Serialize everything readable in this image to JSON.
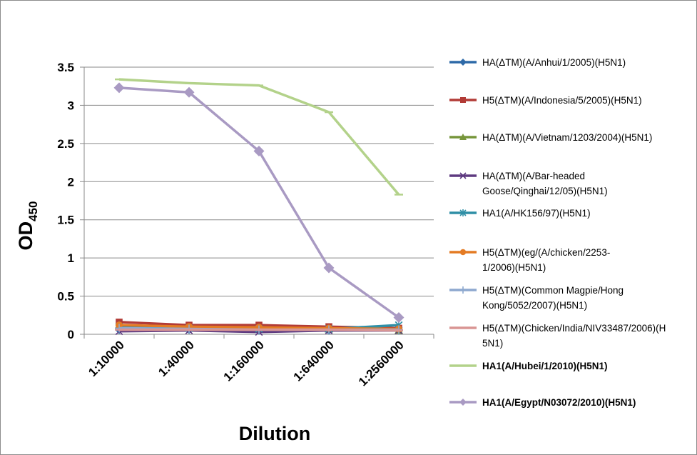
{
  "chart_data": {
    "type": "line",
    "xlabel": "Dilution",
    "ylabel_main": "OD",
    "ylabel_sub": "450",
    "ylim": [
      0,
      3.5
    ],
    "yticks": [
      "0",
      "0.5",
      "1",
      "1.5",
      "2",
      "2.5",
      "3",
      "3.5"
    ],
    "ytick_values": [
      0,
      0.5,
      1,
      1.5,
      2,
      2.5,
      3,
      3.5
    ],
    "categories": [
      "1:10000",
      "1:40000",
      "1:160000",
      "1:640000",
      "1:2560000"
    ],
    "grid": "horizontal",
    "legend_position": "right",
    "series": [
      {
        "name_lines": [
          "HA(ΔTM)(A/Anhui/1/2005)(H5N1)"
        ],
        "color": "#2e6aa8",
        "marker": "diamond",
        "bold": false,
        "values": [
          0.06,
          0.06,
          0.05,
          0.05,
          0.05
        ]
      },
      {
        "name_lines": [
          "H5(ΔTM)(A/Indonesia/5/2005)(H5N1)"
        ],
        "color": "#b23b36",
        "marker": "square",
        "bold": false,
        "values": [
          0.16,
          0.12,
          0.12,
          0.1,
          0.08
        ]
      },
      {
        "name_lines": [
          "HA(ΔTM)(A/Vietnam/1203/2004)(H5N1)"
        ],
        "color": "#77963b",
        "marker": "triangle",
        "bold": false,
        "values": [
          0.12,
          0.09,
          0.09,
          0.07,
          0.05
        ]
      },
      {
        "name_lines": [
          "HA(ΔTM)(A/Bar-headed",
          "Goose/Qinghai/12/05)(H5N1)"
        ],
        "color": "#5e3a80",
        "marker": "x",
        "bold": false,
        "values": [
          0.04,
          0.05,
          0.03,
          0.05,
          0.05
        ]
      },
      {
        "name_lines": [
          "HA1(A/HK156/97)(H5N1)"
        ],
        "color": "#2f8fa6",
        "marker": "star",
        "bold": false,
        "values": [
          0.1,
          0.08,
          0.07,
          0.07,
          0.12
        ]
      },
      {
        "name_lines": [
          "H5(ΔTM)(eg/(A/chicken/2253-",
          "1/2006)(H5N1)"
        ],
        "color": "#e47b24",
        "marker": "circle",
        "bold": false,
        "values": [
          0.12,
          0.1,
          0.09,
          0.08,
          0.07
        ]
      },
      {
        "name_lines": [
          "H5(ΔTM)(Common Magpie/Hong",
          "Kong/5052/2007)(H5N1)"
        ],
        "color": "#8da8cf",
        "marker": "plus",
        "bold": false,
        "values": [
          0.08,
          0.07,
          0.06,
          0.06,
          0.06
        ]
      },
      {
        "name_lines": [
          "H5(ΔTM)(Chicken/India/NIV33487/2006)(H",
          "5N1)"
        ],
        "color": "#d99594",
        "marker": "dash",
        "bold": false,
        "values": [
          0.06,
          0.06,
          0.06,
          0.06,
          0.05
        ]
      },
      {
        "name_lines": [
          "HA1(A/Hubei/1/2010)(H5N1)"
        ],
        "color": "#b3d28a",
        "marker": "dash",
        "bold": true,
        "values": [
          3.34,
          3.29,
          3.26,
          2.91,
          1.83
        ]
      },
      {
        "name_lines": [
          "HA1(A/Egypt/N03072/2010)(H5N1)"
        ],
        "color": "#a99ac3",
        "marker": "diamond",
        "bold": true,
        "values": [
          3.23,
          3.17,
          2.4,
          0.87,
          0.22
        ]
      }
    ]
  }
}
